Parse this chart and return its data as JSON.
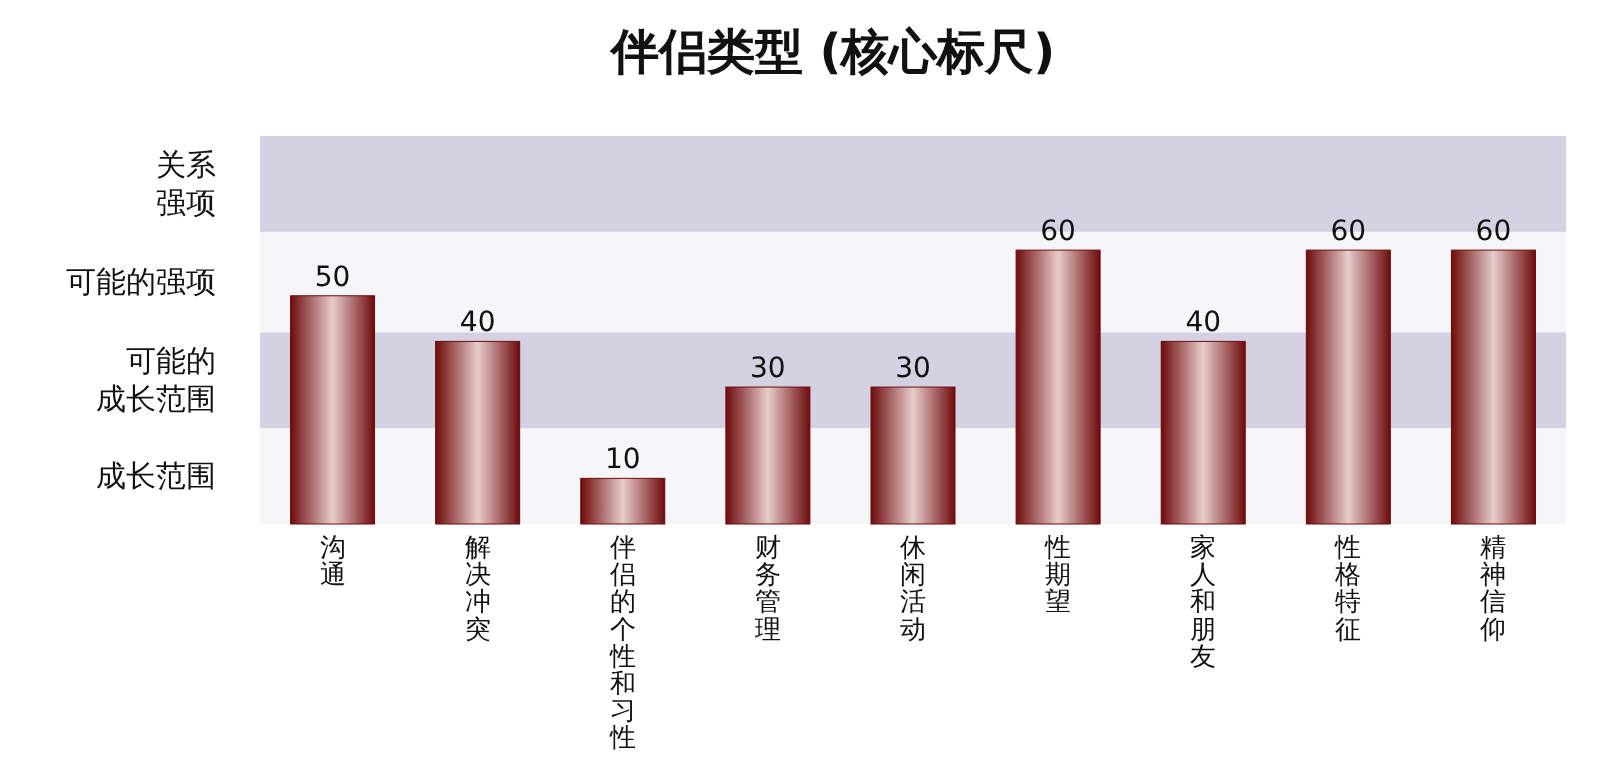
{
  "chart_data": {
    "type": "bar",
    "title": "伴侣类型 (核心标尺)",
    "categories": [
      "沟通",
      "解决冲突",
      "伴侣的个性和习性",
      "财务管理",
      "休闲活动",
      "性期望",
      "家人和朋友",
      "性格特征",
      "精神信仰"
    ],
    "values": [
      50,
      40,
      10,
      30,
      30,
      60,
      40,
      60,
      60
    ],
    "color": "#6e0b0b",
    "ylim": [
      0,
      85
    ],
    "data_labels": true,
    "bands": [
      {
        "axis": "y",
        "from": 0,
        "to": 21,
        "label": "成长范围",
        "color": "#f6f6f9"
      },
      {
        "axis": "y",
        "from": 21,
        "to": 42,
        "label": "可能的成长范围",
        "color": "#d4d1e2"
      },
      {
        "axis": "y",
        "from": 42,
        "to": 64,
        "label": "可能的强项",
        "color": "#f6f6f9"
      },
      {
        "axis": "y",
        "from": 64,
        "to": 85,
        "label": "关系强项",
        "color": "#d4d1e2"
      }
    ]
  }
}
